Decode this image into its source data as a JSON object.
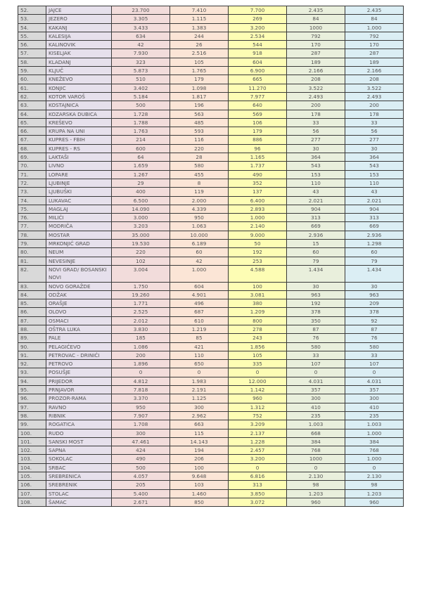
{
  "column_colors": [
    "#d9d9d9",
    "#e6e0ec",
    "#f2dcdb",
    "#fbe5d6",
    "#fdfdb4",
    "#e9efdc",
    "#dbeef4"
  ],
  "rows": [
    [
      "52.",
      "JAJCE",
      "23.700",
      "7.410",
      "7.700",
      "2.435",
      "2.435"
    ],
    [
      "53.",
      "JEZERO",
      "3.305",
      "1.115",
      "269",
      "84",
      "84"
    ],
    [
      "54.",
      "KAKANJ",
      "3.433",
      "1.383",
      "3.200",
      "1000",
      "1.000"
    ],
    [
      "55.",
      "KALESIJA",
      "634",
      "244",
      "2.534",
      "792",
      "792"
    ],
    [
      "56.",
      "KALINOVIK",
      "42",
      "26",
      "544",
      "170",
      "170"
    ],
    [
      "57.",
      "KISELJAK",
      "7.930",
      "2.516",
      "918",
      "287",
      "287"
    ],
    [
      "58.",
      "KLADANJ",
      "323",
      "105",
      "604",
      "189",
      "189"
    ],
    [
      "59.",
      "KLJUČ",
      "5.873",
      "1.765",
      "6.900",
      "2.166",
      "2.166"
    ],
    [
      "60.",
      "KNEŽEVO",
      "510",
      "179",
      "665",
      "208",
      "208"
    ],
    [
      "61.",
      "KONJIC",
      "3.402",
      "1.098",
      "11.270",
      "3.522",
      "3.522"
    ],
    [
      "62.",
      "KOTOR VAROŠ",
      "5.184",
      "1.817",
      "7.977",
      "2.493",
      "2.493"
    ],
    [
      "63.",
      "KOSTAJNICA",
      "500",
      "196",
      "640",
      "200",
      "200"
    ],
    [
      "64.",
      "KOZARSKA DUBICA",
      "1.728",
      "563",
      "569",
      "178",
      "178"
    ],
    [
      "65.",
      "KREŠEVO",
      "1.788",
      "485",
      "106",
      "33",
      "33"
    ],
    [
      "66.",
      "KRUPA NA UNI",
      "1.763",
      "593",
      "179",
      "56",
      "56"
    ],
    [
      "67.",
      "KUPRES - FBIH",
      "214",
      "116",
      "886",
      "277",
      "277"
    ],
    [
      "68.",
      "KUPRES - RS",
      "600",
      "220",
      "96",
      "30",
      "30"
    ],
    [
      "69.",
      "LAKTAŠI",
      "64",
      "28",
      "1.165",
      "364",
      "364"
    ],
    [
      "70.",
      "LIVNO",
      "1.659",
      "580",
      "1.737",
      "543",
      "543"
    ],
    [
      "71.",
      "LOPARE",
      "1.267",
      "455",
      "490",
      "153",
      "153"
    ],
    [
      "72.",
      "LJUBINJE",
      "29",
      "8",
      "352",
      "110",
      "110"
    ],
    [
      "73.",
      "LJUBUŠKI",
      "400",
      "119",
      "137",
      "43",
      "43"
    ],
    [
      "74.",
      "LUKAVAC",
      "6.500",
      "2.000",
      "6.400",
      "2.021",
      "2.021"
    ],
    [
      "75.",
      "MAGLAJ",
      "14.090",
      "4.339",
      "2.893",
      "904",
      "904"
    ],
    [
      "76.",
      "MILIĆI",
      "3.000",
      "950",
      "1.000",
      "313",
      "313"
    ],
    [
      "77.",
      "MODRIČA",
      "3.203",
      "1.063",
      "2.140",
      "669",
      "669"
    ],
    [
      "78.",
      "MOSTAR",
      "35.000",
      "10.000",
      "9.000",
      "2.936",
      "2.936"
    ],
    [
      "79.",
      "MRKONJIĆ GRAD",
      "19.530",
      "6.189",
      "50",
      "15",
      "1.298"
    ],
    [
      "80.",
      "NEUM",
      "220",
      "60",
      "192",
      "60",
      "60"
    ],
    [
      "81.",
      "NEVESINJE",
      "102",
      "42",
      "253",
      "79",
      "79"
    ],
    [
      "82.",
      "NOVI GRAD/ BOSANSKI NOVI",
      "3.004",
      "1.000",
      "4.588",
      "1.434",
      "1.434"
    ],
    [
      "83.",
      "NOVO GORAŽDE",
      "1.750",
      "604",
      "100",
      "30",
      "30"
    ],
    [
      "84.",
      "ODŽAK",
      "19.260",
      "4.901",
      "3.081",
      "963",
      "963"
    ],
    [
      "85.",
      "ORAŠJE",
      "1.771",
      "496",
      "380",
      "192",
      "209"
    ],
    [
      "86.",
      "OLOVO",
      "2.525",
      "687",
      "1.209",
      "378",
      "378"
    ],
    [
      "87.",
      "OSMACI",
      "2.012",
      "610",
      "800",
      "350",
      "92"
    ],
    [
      "88.",
      "OŠTRA LUKA",
      "3.830",
      "1.219",
      "278",
      "87",
      "87"
    ],
    [
      "89.",
      "PALE",
      "185",
      "85",
      "243",
      "76",
      "76"
    ],
    [
      "90.",
      "PELAGIĆEVO",
      "1.086",
      "421",
      "1.856",
      "580",
      "580"
    ],
    [
      "91.",
      "PETROVAC - DRINIĆI",
      "200",
      "110",
      "105",
      "33",
      "33"
    ],
    [
      "92.",
      "PETROVO",
      "1.896",
      "650",
      "335",
      "107",
      "107"
    ],
    [
      "93.",
      "POSUŠJE",
      "0",
      "0",
      "0",
      "0",
      "0"
    ],
    [
      "94.",
      "PRIJEDOR",
      "4.812",
      "1.983",
      "12.000",
      "4.031",
      "4.031"
    ],
    [
      "95.",
      "PRNJAVOR",
      "7.818",
      "2.191",
      "1.142",
      "357",
      "357"
    ],
    [
      "96.",
      "PROZOR-RAMA",
      "3.370",
      "1.125",
      "960",
      "300",
      "300"
    ],
    [
      "97.",
      "RAVNO",
      "950",
      "300",
      "1.312",
      "410",
      "410"
    ],
    [
      "98.",
      "RIBNIK",
      "7.907",
      "2.962",
      "752",
      "235",
      "235"
    ],
    [
      "99.",
      "ROGATICA",
      "1.708",
      "663",
      "3.209",
      "1.003",
      "1.003"
    ],
    [
      "100.",
      "RUDO",
      "300",
      "115",
      "2.137",
      "668",
      "1.000"
    ],
    [
      "101.",
      "SANSKI MOST",
      "47.461",
      "14.143",
      "1.228",
      "384",
      "384"
    ],
    [
      "102.",
      "SAPNA",
      "424",
      "194",
      "2.457",
      "768",
      "768"
    ],
    [
      "103.",
      "SOKOLAC",
      "490",
      "206",
      "3.200",
      "1000",
      "1.000"
    ],
    [
      "104.",
      "SRBAC",
      "500",
      "100",
      "0",
      "0",
      "0"
    ],
    [
      "105.",
      "SREBRENICA",
      "4.057",
      "9.648",
      "6.816",
      "2.130",
      "2.130"
    ],
    [
      "106.",
      "SREBRENIK",
      "205",
      "103",
      "313",
      "98",
      "98"
    ],
    [
      "107.",
      "STOLAC",
      "5.400",
      "1.460",
      "3.850",
      "1.203",
      "1.203"
    ],
    [
      "108.",
      "ŠAMAC",
      "2.671",
      "850",
      "3.072",
      "960",
      "960"
    ]
  ]
}
